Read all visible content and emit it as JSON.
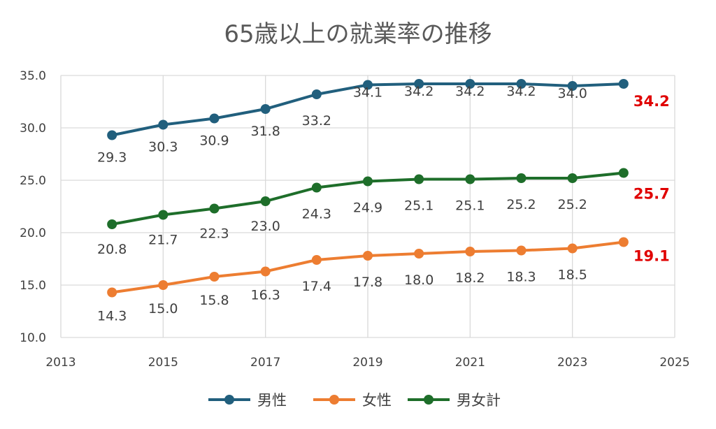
{
  "chart_data": {
    "type": "line",
    "title": "65歳以上の就業率の推移",
    "xlabel": "",
    "ylabel": "",
    "x": [
      2014,
      2015,
      2016,
      2017,
      2018,
      2019,
      2020,
      2021,
      2022,
      2023,
      2024
    ],
    "xlim": [
      2013,
      2025
    ],
    "xticks": [
      2013,
      2015,
      2017,
      2019,
      2021,
      2023,
      2025
    ],
    "xtick_labels": [
      "2013",
      "2015",
      "2017",
      "2019",
      "2021",
      "2023",
      "2025"
    ],
    "ylim": [
      10,
      35
    ],
    "yticks": [
      10,
      15,
      20,
      25,
      30,
      35
    ],
    "ytick_labels": [
      "10.0",
      "15.0",
      "20.0",
      "25.0",
      "30.0",
      "35.0"
    ],
    "grid": true,
    "legend_position": "bottom",
    "series": [
      {
        "name": "男性",
        "color": "#215f7d",
        "values": [
          29.3,
          30.3,
          30.9,
          31.8,
          33.2,
          34.1,
          34.2,
          34.2,
          34.2,
          34.0,
          34.2
        ],
        "labels": [
          "29.3",
          "30.3",
          "30.9",
          "31.8",
          "33.2",
          "34.1",
          "34.2",
          "34.2",
          "34.2",
          "34.0",
          "34.2"
        ]
      },
      {
        "name": "女性",
        "color": "#ed7d31",
        "values": [
          14.3,
          15.0,
          15.8,
          16.3,
          17.4,
          17.8,
          18.0,
          18.2,
          18.3,
          18.5,
          19.1
        ],
        "labels": [
          "14.3",
          "15.0",
          "15.8",
          "16.3",
          "17.4",
          "17.8",
          "18.0",
          "18.2",
          "18.3",
          "18.5",
          "19.1"
        ]
      },
      {
        "name": "男女計",
        "color": "#1e6e2a",
        "values": [
          20.8,
          21.7,
          22.3,
          23.0,
          24.3,
          24.9,
          25.1,
          25.1,
          25.2,
          25.2,
          25.7
        ],
        "labels": [
          "20.8",
          "21.7",
          "22.3",
          "23.0",
          "24.3",
          "24.9",
          "25.1",
          "25.1",
          "25.2",
          "25.2",
          "25.7"
        ]
      }
    ],
    "highlight_color": "#e00000"
  }
}
